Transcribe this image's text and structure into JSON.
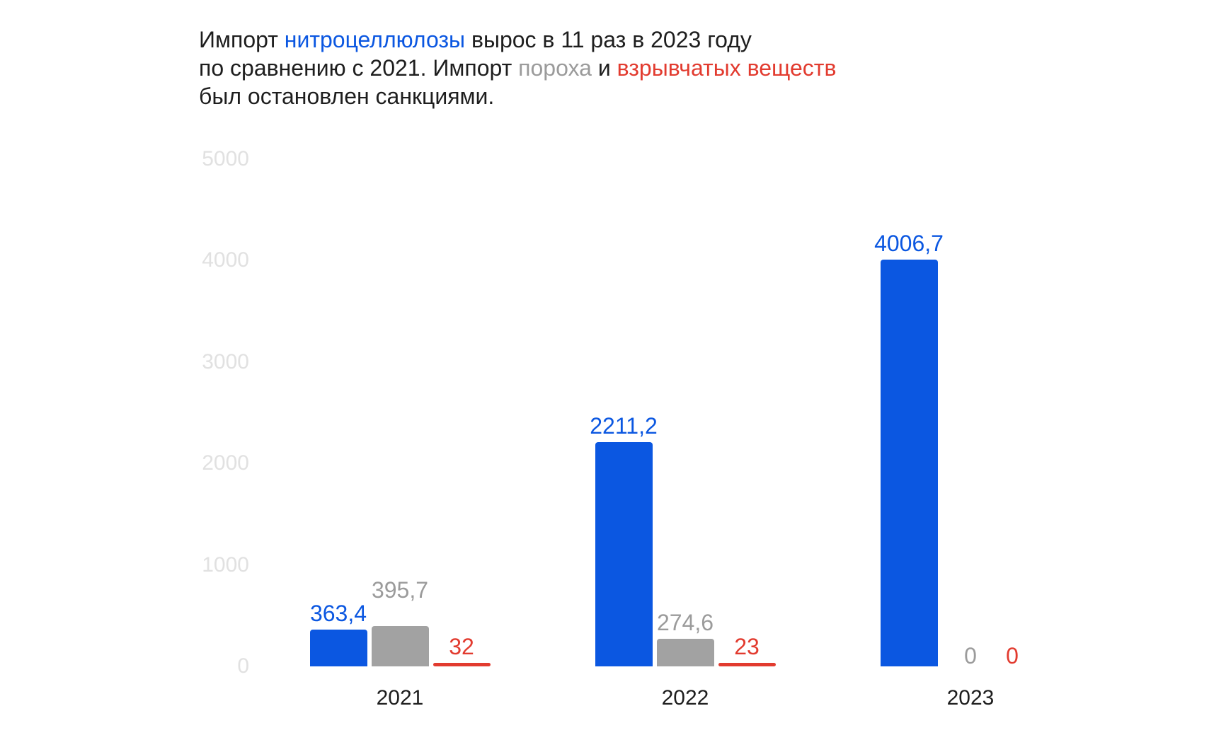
{
  "colors": {
    "background": "#ffffff",
    "text_black": "#1e1e1e",
    "blue": "#0b57e1",
    "gray_bar": "#a2a2a2",
    "gray_text": "#9b9b9b",
    "red": "#e23b2f",
    "axis_tick_gray": "#e1e1e1"
  },
  "title": {
    "segments": [
      {
        "text": "Импорт ",
        "color": "#1e1e1e",
        "break_after": false
      },
      {
        "text": "нитроцеллюлозы",
        "color": "#0b57e1",
        "break_after": false
      },
      {
        "text": " вырос в 11 раз в 2023 году",
        "color": "#1e1e1e",
        "break_after": true
      },
      {
        "text": "по сравнению с 2021. Импорт ",
        "color": "#1e1e1e",
        "break_after": false
      },
      {
        "text": "пороха",
        "color": "#9b9b9b",
        "break_after": false
      },
      {
        "text": " и ",
        "color": "#1e1e1e",
        "break_after": false
      },
      {
        "text": "взрывчатых веществ",
        "color": "#e23b2f",
        "break_after": true
      },
      {
        "text": "был остановлен санкциями.",
        "color": "#1e1e1e",
        "break_after": false
      }
    ]
  },
  "chart_data": {
    "type": "bar",
    "title": "Импорт нитроцеллюлозы вырос в 11 раз в 2023 году по сравнению с 2021. Импорт пороха и взрывчатых веществ был остановлен санкциями.",
    "categories": [
      "2021",
      "2022",
      "2023"
    ],
    "series": [
      {
        "name": "нитроцеллюлоза",
        "slug": "nitrocellulose",
        "color": "#0b57e1",
        "label_color": "#0b57e1",
        "values": [
          363.4,
          2211.2,
          4006.7
        ],
        "labels": [
          "363,4",
          "2211,2",
          "4006,7"
        ]
      },
      {
        "name": "порох",
        "slug": "gunpowder",
        "color": "#a2a2a2",
        "label_color": "#9b9b9b",
        "values": [
          395.7,
          274.6,
          0
        ],
        "labels": [
          "395,7",
          "274,6",
          "0"
        ]
      },
      {
        "name": "взрывчатые вещества",
        "slug": "explosives",
        "color": "#e23b2f",
        "label_color": "#e23b2f",
        "values": [
          32,
          23,
          0
        ],
        "labels": [
          "32",
          "23",
          "0"
        ]
      }
    ],
    "yticks": [
      "5000",
      "4000",
      "3000",
      "2000",
      "1000",
      "0"
    ],
    "ytick_values": [
      5000,
      4000,
      3000,
      2000,
      1000,
      0
    ],
    "ylim": [
      0,
      5000
    ],
    "xlabel": "",
    "ylabel": "",
    "grid": false,
    "legend": "none",
    "value_labels_shown": true
  }
}
